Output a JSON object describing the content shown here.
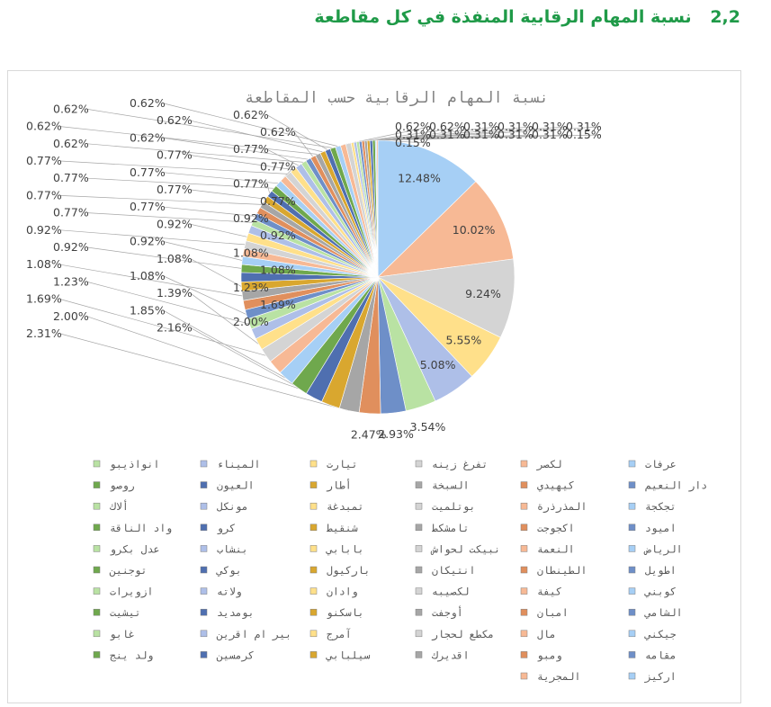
{
  "heading": {
    "number": "2,2",
    "text": "نسبة المهام الرقابية المنفذة في كل مقاطعة"
  },
  "colors": [
    "#a6cff5",
    "#f7b995",
    "#d4d4d4",
    "#ffe08a",
    "#aebfe8",
    "#b9e2a3",
    "#6e8fc8",
    "#e08f5d",
    "#a6a6a6",
    "#d9a72f",
    "#4f6fb0",
    "#6fa84d"
  ],
  "chart_data": {
    "type": "pie",
    "title": "نسبة المهام الرقابية حسب المقاطعة",
    "legend_position": "bottom",
    "categories": [
      "عرفات",
      "لكصر",
      "تفرغ زينه",
      "تيارت",
      "الميناء",
      "انواذيبو",
      "دار النعيم",
      "كيهيدي",
      "السبخة",
      "أطار",
      "العيون",
      "روصو",
      "تجكجة",
      "المذرذرة",
      "بوتلميت",
      "تمبدغة",
      "مونكل",
      "ألاك",
      "اميود",
      "اكجوجت",
      "تامشكط",
      "شنقيط",
      "كرو",
      "واد الناقة",
      "الرياض",
      "النعمة",
      "نبيكت لحواش",
      "بابابي",
      "بنشاب",
      "عدل بكرو",
      "اطويل",
      "الطينطان",
      "انتيكان",
      "باركيول",
      "بوكي",
      "توجنين",
      "كوبني",
      "كيفة",
      "لكصيبه",
      "وادان",
      "ولاته",
      "ازويرات",
      "الشامي",
      "امبان",
      "أوجفت",
      "باسكنو",
      "بومديد",
      "تيشيت",
      "جيكني",
      "مال",
      "مكطع لحجار",
      "آمرج",
      "بير ام اقرين",
      "غابو",
      "مقامه",
      "ومبو",
      "اقديرك",
      "سيلبابي",
      "كرمسين",
      "ولد ينج",
      "اركيز",
      "المجرية"
    ],
    "values": [
      12.48,
      10.02,
      9.24,
      5.55,
      5.08,
      3.54,
      2.93,
      2.47,
      2.31,
      2.16,
      2.0,
      2.0,
      1.85,
      1.69,
      1.69,
      1.39,
      1.23,
      1.23,
      1.08,
      1.08,
      1.08,
      1.08,
      1.08,
      0.92,
      0.92,
      0.92,
      0.92,
      0.92,
      0.92,
      0.77,
      0.77,
      0.77,
      0.77,
      0.77,
      0.77,
      0.77,
      0.77,
      0.77,
      0.77,
      0.77,
      0.77,
      0.62,
      0.62,
      0.62,
      0.62,
      0.62,
      0.62,
      0.62,
      0.62,
      0.62,
      0.62,
      0.31,
      0.31,
      0.31,
      0.31,
      0.31,
      0.31,
      0.31,
      0.31,
      0.31,
      0.15,
      0.15
    ],
    "data_labels": [
      "12.48%",
      "10.02%",
      "9.24%",
      "5.55%",
      "5.08%",
      "3.54%",
      "2.93%",
      "2.47%",
      "2.31%",
      "2.16%",
      "2.00%",
      "2.00%",
      "1.85%",
      "1.69%",
      "1.69%",
      "1.39%",
      "1.23%",
      "1.23%",
      "1.08%",
      "1.08%",
      "1.08%",
      "1.08%",
      "1.08%",
      "0.92%",
      "0.92%",
      "0.92%",
      "0.92%",
      "0.92%",
      "0.92%",
      "0.77%",
      "0.77%",
      "0.77%",
      "0.77%",
      "0.77%",
      "0.77%",
      "0.77%",
      "0.77%",
      "0.77%",
      "0.77%",
      "0.77%",
      "0.77%",
      "0.62%",
      "0.62%",
      "0.62%",
      "0.62%",
      "0.62%",
      "0.62%",
      "0.62%",
      "0.62%",
      "0.62%",
      "0.62%",
      "0.31%",
      "0.31%",
      "0.31%",
      "0.31%",
      "0.31%",
      "0.31%",
      "0.31%",
      "0.31%",
      "0.31%",
      "0.15%",
      "0.15%"
    ]
  }
}
